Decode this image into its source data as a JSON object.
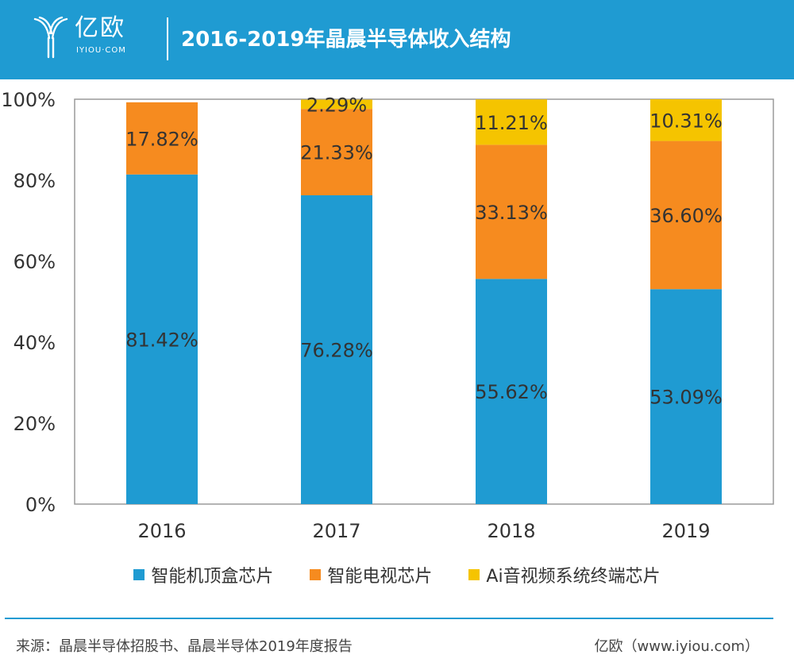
{
  "header": {
    "logo_name": "亿欧",
    "logo_sub": "IYIOU·COM",
    "title": "2016-2019年晶晨半导体收入结构"
  },
  "colors": {
    "header_bg": "#1f9bd2",
    "series": [
      "#1f9bd2",
      "#f68b1f",
      "#f5c400"
    ]
  },
  "chart_data": {
    "type": "bar",
    "stacked": true,
    "title": "2016-2019年晶晨半导体收入结构",
    "categories": [
      "2016",
      "2017",
      "2018",
      "2019"
    ],
    "series": [
      {
        "name": "智能机顶盒芯片",
        "values": [
          81.42,
          76.28,
          55.62,
          53.09
        ],
        "labels": [
          "81.42%",
          "76.28%",
          "55.62%",
          "53.09%"
        ]
      },
      {
        "name": "智能电视芯片",
        "values": [
          17.82,
          21.33,
          33.13,
          36.6
        ],
        "labels": [
          "17.82%",
          "21.33%",
          "33.13%",
          "36.60%"
        ]
      },
      {
        "name": "Ai音视频系统终端芯片",
        "values": [
          0,
          2.29,
          11.21,
          10.31
        ],
        "labels": [
          "",
          "2.29%",
          "11.21%",
          "10.31%"
        ]
      }
    ],
    "ylim": [
      0,
      100
    ],
    "yticks": [
      "0%",
      "20%",
      "40%",
      "60%",
      "80%",
      "100%"
    ],
    "xlabel": "",
    "ylabel": "",
    "legend_position": "bottom"
  },
  "footer": {
    "source": "来源：晶晨半导体招股书、晶晨半导体2019年度报告",
    "brand": "亿欧（www.iyiou.com）"
  }
}
